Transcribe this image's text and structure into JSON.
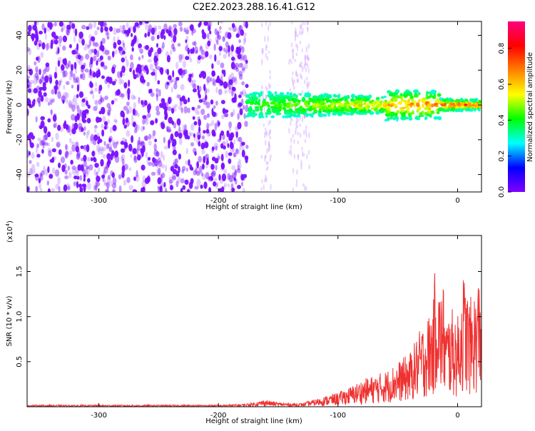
{
  "figure_title": "C2E2.2023.288.16.41.G12",
  "colors": {
    "snr_line": "#f03030",
    "axis": "#000000",
    "colormap": [
      "#ffffff",
      "#8000ff",
      "#0000ff",
      "#00ffff",
      "#00ff00",
      "#ffff00",
      "#ff8000",
      "#ff0000",
      "#ff0080"
    ]
  },
  "chart_data": [
    {
      "type": "heatmap",
      "title": "C2E2.2023.288.16.41.G12",
      "xlabel": "Height of straight line (km)",
      "ylabel": "Frequency (Hz)",
      "xlim": [
        -360,
        20
      ],
      "ylim": [
        -50,
        48
      ],
      "xticks": [
        -300,
        -200,
        -100,
        0
      ],
      "xtick_labels": [
        "-300",
        "-200",
        "-100",
        "0"
      ],
      "yticks": [
        -40,
        -20,
        0,
        20,
        40
      ],
      "ytick_labels": [
        "-40",
        "-20",
        "0",
        "20",
        "40"
      ],
      "grid": false,
      "colorbar": {
        "label": "Normalized spectral amplitude",
        "range": [
          0,
          0.95
        ],
        "ticks": [
          0.0,
          0.2,
          0.4,
          0.6,
          0.8
        ],
        "tick_labels": [
          "0.0",
          "0.2",
          "0.4",
          "0.6",
          "0.8"
        ]
      },
      "regions": [
        {
          "name": "broadband noise",
          "x_range": [
            -360,
            -176
          ],
          "freq_range": [
            -50,
            48
          ],
          "amplitude": 0.15
        },
        {
          "name": "noise streaks",
          "x_centers": [
            -160,
            -137,
            -128
          ],
          "freq_range": [
            -50,
            48
          ],
          "amplitude": 0.08
        },
        {
          "name": "signal band",
          "x_range": [
            -176,
            20
          ],
          "freq_center": 0,
          "freq_halfwidth": 7,
          "amplitude_range": [
            0.3,
            0.9
          ]
        }
      ]
    },
    {
      "type": "line",
      "xlabel": "Height of straight line (km)",
      "ylabel": "SNR (10 * v/v)",
      "multiplier_label": "(x10",
      "multiplier_exp": "4",
      "xlim": [
        -360,
        20
      ],
      "ylim": [
        0,
        1.9
      ],
      "xticks": [
        -300,
        -200,
        -100,
        0
      ],
      "xtick_labels": [
        "-300",
        "-200",
        "-100",
        "0"
      ],
      "yticks": [
        0.5,
        1.0,
        1.5
      ],
      "ytick_labels": [
        "0.5",
        "1.0",
        "1.5"
      ],
      "grid": false,
      "series": [
        {
          "x": [
            -360,
            -340,
            -320,
            -300,
            -280,
            -260,
            -240,
            -220,
            -200,
            -180,
            -170,
            -160,
            -155,
            -150,
            -140,
            -130,
            -125,
            -120,
            -110,
            -100,
            -90,
            -80,
            -70,
            -60,
            -50,
            -40,
            -35,
            -30,
            -25,
            -20,
            -18,
            -15,
            -12,
            -10,
            -5,
            0,
            5,
            10,
            15,
            20
          ],
          "values": [
            0.02,
            0.02,
            0.02,
            0.02,
            0.02,
            0.02,
            0.02,
            0.02,
            0.02,
            0.03,
            0.05,
            0.08,
            0.06,
            0.05,
            0.04,
            0.04,
            0.06,
            0.08,
            0.12,
            0.16,
            0.22,
            0.3,
            0.35,
            0.4,
            0.5,
            0.6,
            0.75,
            0.9,
            1.0,
            1.2,
            1.9,
            1.3,
            1.4,
            1.0,
            1.1,
            1.0,
            1.5,
            1.2,
            1.3,
            1.6
          ]
        }
      ]
    }
  ]
}
